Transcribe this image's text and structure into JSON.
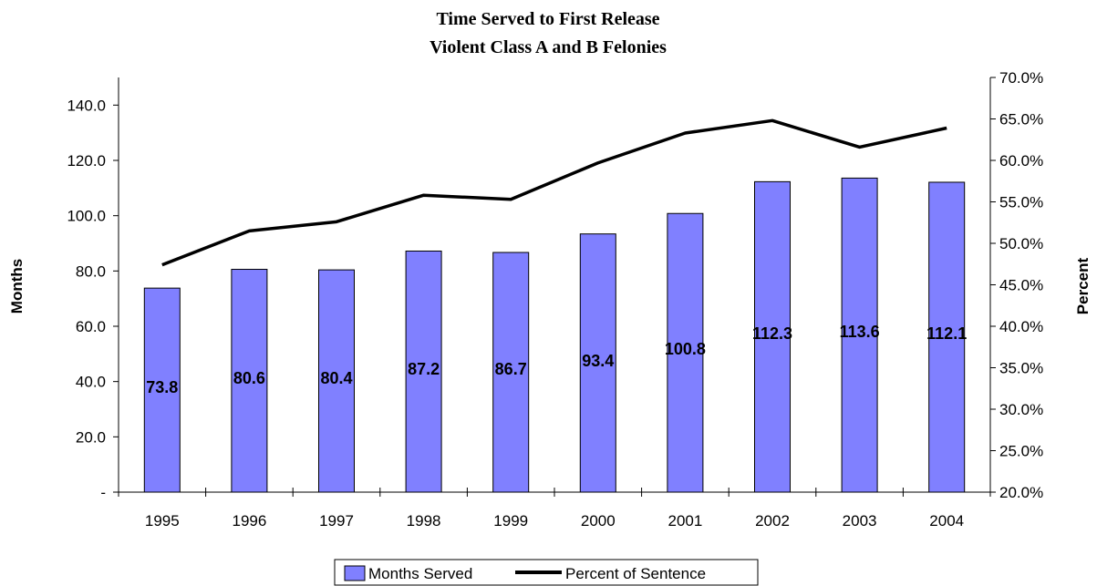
{
  "chart_data": {
    "type": "bar",
    "title": [
      "Time Served to First Release",
      "Violent Class A and B Felonies"
    ],
    "categories": [
      "1995",
      "1996",
      "1997",
      "1998",
      "1999",
      "2000",
      "2001",
      "2002",
      "2003",
      "2004"
    ],
    "series": [
      {
        "name": "Months Served",
        "kind": "bar",
        "axis": "left",
        "color": "#8080ff",
        "values": [
          73.8,
          80.6,
          80.4,
          87.2,
          86.7,
          93.4,
          100.8,
          112.3,
          113.6,
          112.1
        ],
        "labels": [
          "73.8",
          "80.6",
          "80.4",
          "87.2",
          "86.7",
          "93.4",
          "100.8",
          "112.3",
          "113.6",
          "112.1"
        ]
      },
      {
        "name": "Percent of Sentence",
        "kind": "line",
        "axis": "right",
        "color": "#000000",
        "values": [
          47.4,
          51.5,
          52.6,
          55.8,
          55.3,
          59.7,
          63.3,
          64.8,
          61.6,
          63.9
        ]
      }
    ],
    "ylabel": "Months",
    "y2label": "Percent",
    "ylim": [
      0,
      150
    ],
    "y2lim": [
      20,
      70
    ],
    "yticks": [
      "-",
      "20.0",
      "40.0",
      "60.0",
      "80.0",
      "100.0",
      "120.0",
      "140.0"
    ],
    "y2ticks": [
      "20.0%",
      "25.0%",
      "30.0%",
      "35.0%",
      "40.0%",
      "45.0%",
      "50.0%",
      "55.0%",
      "60.0%",
      "65.0%",
      "70.0%"
    ],
    "grid": false,
    "legend": "bottom"
  }
}
